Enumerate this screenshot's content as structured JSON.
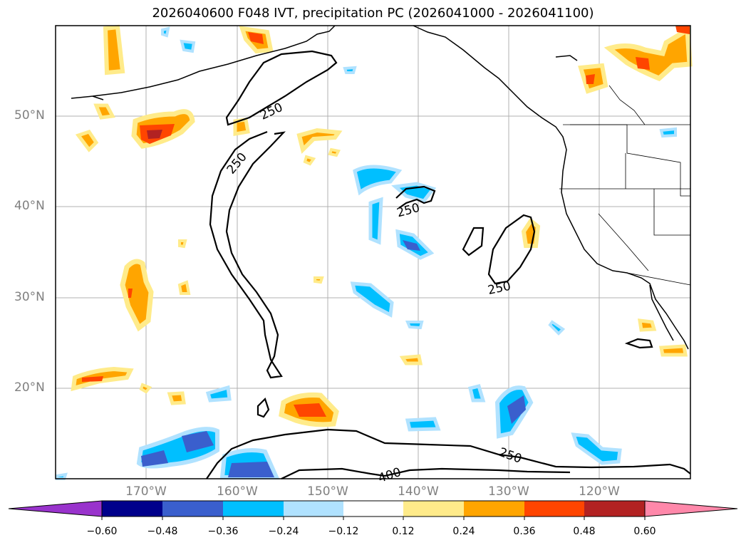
{
  "title": "2026040600 F048 IVT, precipitation PC (2026041000 - 2026041100)",
  "lat_labels": [
    "50°N",
    "40°N",
    "30°N",
    "20°N"
  ],
  "lon_labels": [
    "170°W",
    "160°W",
    "150°W",
    "140°W",
    "130°W",
    "120°W"
  ],
  "ivt_contour_labels": [
    "250",
    "250",
    "250",
    "250",
    "250",
    "400"
  ],
  "colorbar": {
    "ticks": [
      "−0.60",
      "−0.48",
      "−0.36",
      "−0.24",
      "−0.12",
      "0.12",
      "0.24",
      "0.36",
      "0.48",
      "0.60"
    ],
    "colors": [
      "#9933cc",
      "#00008b",
      "#3a5fcd",
      "#00bfff",
      "#b0e2ff",
      "#ffffff",
      "#ffeb8a",
      "#ffa500",
      "#ff4500",
      "#b22222",
      "#ff88aa"
    ]
  },
  "palette": {
    "gridline": "#b0b0b0",
    "coast": "#000000",
    "neg_light": "#b0e2ff",
    "neg_mid": "#00bfff",
    "neg_dark": "#3a5fcd",
    "pos_light": "#ffeb8a",
    "pos_mid": "#ffa500",
    "pos_strong": "#ff4500",
    "pos_dark": "#b22222"
  }
}
